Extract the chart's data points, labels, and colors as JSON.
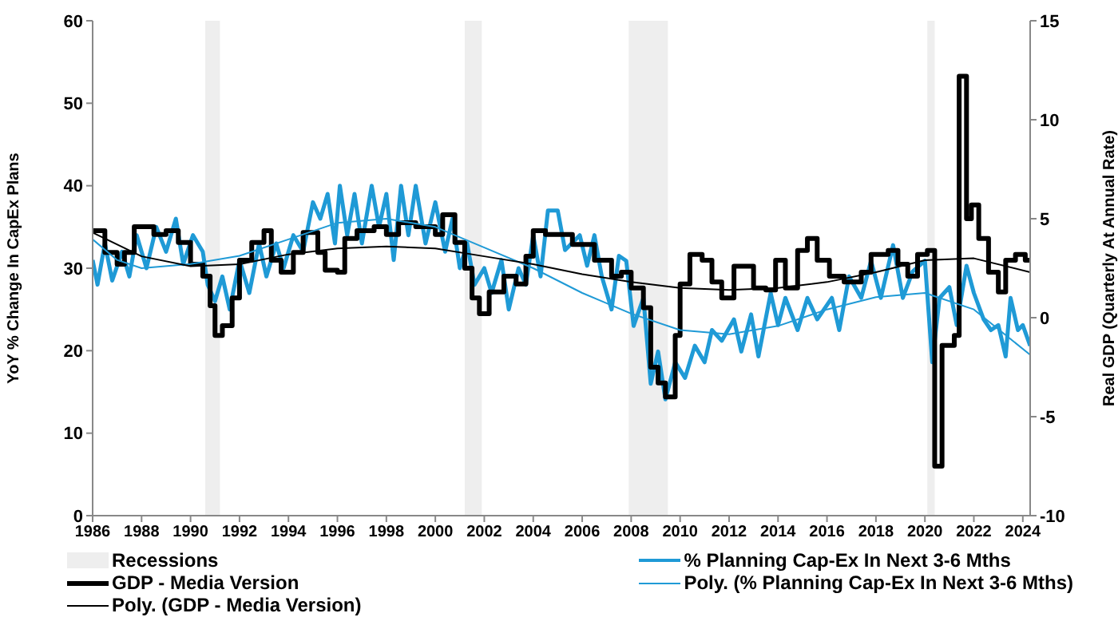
{
  "chart_data": {
    "type": "line",
    "ylabel": "YoY % Change In CapEx Plans",
    "y2label": "Real GDP (Quarterly At Annual Rate)",
    "xlim": [
      1986,
      2024.3
    ],
    "xticks": [
      1986,
      1988,
      1990,
      1992,
      1994,
      1996,
      1998,
      2000,
      2002,
      2004,
      2006,
      2008,
      2010,
      2012,
      2014,
      2016,
      2018,
      2020,
      2022,
      2024
    ],
    "ylim": [
      0,
      60
    ],
    "yticks": [
      0,
      10,
      20,
      30,
      40,
      50,
      60
    ],
    "y2lim": [
      -10,
      15
    ],
    "y2ticks": [
      -10,
      -5,
      0,
      5,
      10,
      15
    ],
    "grid": false,
    "legend": "bottom",
    "bands": [
      {
        "axis": "x",
        "from": 1990.6,
        "to": 1991.2,
        "label": "Recessions",
        "color": "#eeeeee"
      },
      {
        "axis": "x",
        "from": 2001.2,
        "to": 2001.9,
        "color": "#eeeeee"
      },
      {
        "axis": "x",
        "from": 2007.9,
        "to": 2009.5,
        "color": "#eeeeee"
      },
      {
        "axis": "x",
        "from": 2020.1,
        "to": 2020.4,
        "color": "#eeeeee"
      }
    ],
    "series": [
      {
        "name": "% Planning Cap-Ex In Next 3-6 Mths",
        "color": "#1f9ad6",
        "x": [
          1986,
          1986.2,
          1986.5,
          1986.8,
          1987.2,
          1987.5,
          1987.8,
          1988.2,
          1988.6,
          1989,
          1989.4,
          1989.7,
          1990.1,
          1990.5,
          1990.7,
          1991,
          1991.3,
          1991.6,
          1992,
          1992.4,
          1992.8,
          1993.1,
          1993.5,
          1993.8,
          1994.2,
          1994.6,
          1995,
          1995.3,
          1995.6,
          1995.9,
          1996.1,
          1996.4,
          1996.7,
          1997,
          1997.4,
          1997.7,
          1998,
          1998.3,
          1998.6,
          1998.9,
          1999.2,
          1999.6,
          2000,
          2000.4,
          2000.7,
          2001,
          2001.3,
          2001.6,
          2002,
          2002.3,
          2002.7,
          2003,
          2003.4,
          2003.7,
          2004,
          2004.3,
          2004.6,
          2005,
          2005.3,
          2005.9,
          2006.2,
          2006.5,
          2006.8,
          2007.2,
          2007.5,
          2007.8,
          2008.1,
          2008.5,
          2008.8,
          2009.1,
          2009.4,
          2009.8,
          2010.2,
          2010.6,
          2011,
          2011.3,
          2011.7,
          2012.2,
          2012.5,
          2012.9,
          2013.2,
          2013.7,
          2014,
          2014.3,
          2014.8,
          2015.2,
          2015.6,
          2016.2,
          2016.5,
          2016.9,
          2017.4,
          2017.8,
          2018.2,
          2018.7,
          2019.1,
          2019.5,
          2020,
          2020.3,
          2020.6,
          2021,
          2021.3,
          2021.7,
          2022,
          2022.4,
          2022.7,
          2023,
          2023.3,
          2023.5,
          2023.8,
          2024,
          2024.3
        ],
        "values": [
          31,
          28,
          33,
          28.5,
          32,
          29,
          34,
          30,
          35,
          32,
          36,
          30.5,
          34,
          32,
          28,
          26,
          29,
          25,
          31,
          27,
          33,
          29,
          33,
          30,
          34,
          32,
          38,
          36,
          39,
          33,
          40,
          34,
          39,
          33,
          40,
          35,
          39,
          31,
          40,
          34,
          40,
          33,
          38,
          32,
          36,
          30,
          33,
          28,
          30,
          27,
          31,
          25,
          30,
          28,
          34,
          29,
          37,
          37,
          32.2,
          34,
          30.3,
          34,
          29,
          25,
          31.5,
          30.9,
          23,
          26.4,
          16,
          19.9,
          14.1,
          18.6,
          16.7,
          20.6,
          18.6,
          22.5,
          21.2,
          23.8,
          19.9,
          24.4,
          19.3,
          27,
          23.1,
          26.4,
          22.5,
          26.4,
          23.8,
          26.4,
          22.5,
          29,
          26.4,
          30.9,
          26.4,
          32.8,
          26.4,
          29.6,
          30.9,
          18.6,
          26.4,
          27.7,
          23.1,
          30.3,
          27,
          23.8,
          22.5,
          23.1,
          19.3,
          26.4,
          22.5,
          23.1,
          20.6
        ]
      },
      {
        "name": "GDP - Media Version",
        "type": "step",
        "color": "#000000",
        "axis": "y2",
        "x": [
          1986,
          1986.5,
          1987,
          1987.3,
          1987.7,
          1988.5,
          1989,
          1989.5,
          1990,
          1990.5,
          1990.8,
          1991,
          1991.3,
          1991.7,
          1992,
          1992.5,
          1993,
          1993.3,
          1993.7,
          1994.2,
          1994.6,
          1995.2,
          1995.5,
          1996,
          1996.3,
          1996.8,
          1997.5,
          1998,
          1998.5,
          1999.2,
          2000,
          2000.3,
          2000.8,
          2001.2,
          2001.5,
          2001.8,
          2002.2,
          2002.8,
          2003.3,
          2003.7,
          2004,
          2004.5,
          2005.2,
          2005.6,
          2006.5,
          2007.2,
          2007.6,
          2008,
          2008.5,
          2008.8,
          2009.1,
          2009.4,
          2009.8,
          2010,
          2010.4,
          2010.9,
          2011.3,
          2011.7,
          2012.2,
          2012.7,
          2013,
          2013.5,
          2013.9,
          2014.3,
          2014.8,
          2015.2,
          2015.6,
          2016.1,
          2016.7,
          2017.4,
          2017.8,
          2018.5,
          2018.9,
          2019.3,
          2019.7,
          2020.1,
          2020.4,
          2020.7,
          2021.2,
          2021.4,
          2021.7,
          2021.9,
          2022.2,
          2022.6,
          2023,
          2023.3,
          2023.7,
          2024.1,
          2024.3
        ],
        "values": [
          4.4,
          3.3,
          2.7,
          3.3,
          4.6,
          4.2,
          4.4,
          3.8,
          2.7,
          2.1,
          0.6,
          -0.9,
          -0.4,
          1,
          2.9,
          3.8,
          4.4,
          2.9,
          2.3,
          3.3,
          4.3,
          3.3,
          2.4,
          2.3,
          4,
          4.4,
          4.6,
          4.2,
          4.8,
          4.6,
          4.2,
          5.2,
          3.8,
          2.5,
          1,
          0.2,
          1.3,
          2.1,
          1.7,
          3.1,
          4.4,
          4.2,
          4.2,
          3.7,
          2.9,
          2.1,
          2.3,
          1.5,
          0.5,
          -2.5,
          -3.3,
          -4,
          -0.9,
          1.7,
          3.2,
          2.9,
          1.8,
          1,
          2.6,
          2.6,
          1.5,
          1.4,
          2.9,
          1.5,
          3.4,
          4,
          2.9,
          2.1,
          1.8,
          2.3,
          3.2,
          3.4,
          2.7,
          2.1,
          3.2,
          3.4,
          -7.5,
          -1.4,
          -0.9,
          12.2,
          5,
          5.7,
          4,
          2.3,
          1.3,
          2.9,
          3.2,
          2.9,
          2.9
        ]
      },
      {
        "name": "Poly. (% Planning Cap-Ex In Next 3-6 Mths)",
        "color": "#1f9ad6",
        "x": [
          1986,
          1987,
          1988,
          1990,
          1992,
          1994,
          1996,
          1998,
          2000,
          2002,
          2004,
          2006,
          2008,
          2010,
          2012,
          2014,
          2016,
          2018,
          2020,
          2022,
          2024.3
        ],
        "values": [
          33.5,
          31,
          30,
          30.5,
          31.5,
          33.5,
          35.5,
          36,
          35,
          32.5,
          30,
          27,
          24.5,
          22.5,
          22,
          23,
          25,
          26.5,
          27,
          25,
          19.5
        ]
      },
      {
        "name": "Poly. (GDP - Media Version)",
        "color": "#000000",
        "axis": "y2",
        "x": [
          1986,
          1988,
          1990,
          1992,
          1994,
          1996,
          1998,
          2000,
          2002,
          2004,
          2006,
          2008,
          2010,
          2012,
          2014,
          2016,
          2018,
          2020,
          2022,
          2024.3
        ],
        "values": [
          4.3,
          3.1,
          2.6,
          2.7,
          3.2,
          3.5,
          3.6,
          3.5,
          3.1,
          2.7,
          2.2,
          1.8,
          1.5,
          1.4,
          1.5,
          1.8,
          2.3,
          2.9,
          3,
          2.3
        ]
      }
    ]
  }
}
